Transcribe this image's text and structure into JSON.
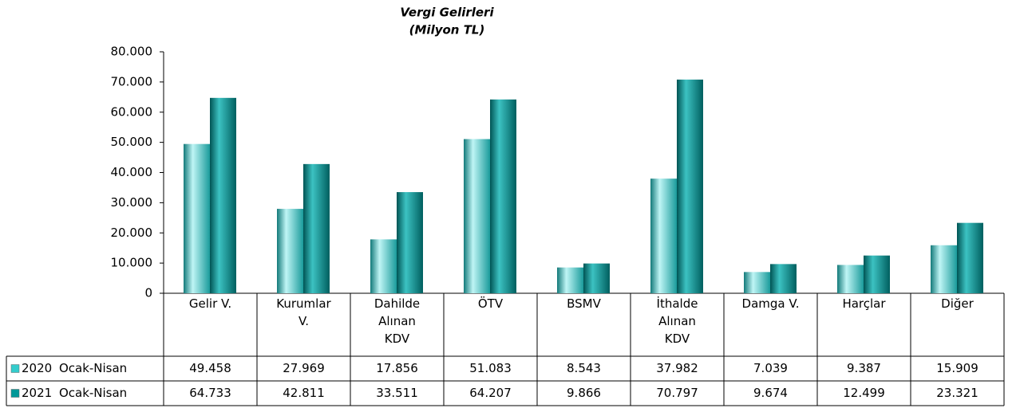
{
  "chart_data": {
    "type": "bar",
    "title": "Vergi Gelirleri",
    "subtitle": "(Milyon TL)",
    "categories": [
      "Gelir V.",
      "Kurumlar V.",
      "Dahilde Alınan KDV",
      "ÖTV",
      "BSMV",
      "İthalde Alınan KDV",
      "Damga V.",
      "Harçlar",
      "Diğer"
    ],
    "series": [
      {
        "name": "2020 Ocak-Nisan",
        "color": "#33cccc",
        "values": [
          49458,
          27969,
          17856,
          51083,
          8543,
          37982,
          7039,
          9387,
          15909
        ],
        "value_labels": [
          "49.458",
          "27.969",
          "17.856",
          "51.083",
          "8.543",
          "37.982",
          "7.039",
          "9.387",
          "15.909"
        ]
      },
      {
        "name": "2021 Ocak-Nisan",
        "color": "#009999",
        "values": [
          64733,
          42811,
          33511,
          64207,
          9866,
          70797,
          9674,
          12499,
          23321
        ],
        "value_labels": [
          "64.733",
          "42.811",
          "33.511",
          "64.207",
          "9.866",
          "70.797",
          "9.674",
          "12.499",
          "23.321"
        ]
      }
    ],
    "ylim": [
      0,
      80000
    ],
    "yticks": [
      0,
      {
        "value": 10000,
        "label": "10.000"
      },
      {
        "value": 20000,
        "label": "20.000"
      },
      {
        "value": 30000,
        "label": "30.000"
      },
      {
        "value": 40000,
        "label": "40.000"
      },
      {
        "value": 50000,
        "label": "50.000"
      },
      {
        "value": 60000,
        "label": "60.000"
      },
      {
        "value": 70000,
        "label": "70.000"
      },
      {
        "value": 80000,
        "label": "80.000"
      }
    ],
    "grid": false
  }
}
